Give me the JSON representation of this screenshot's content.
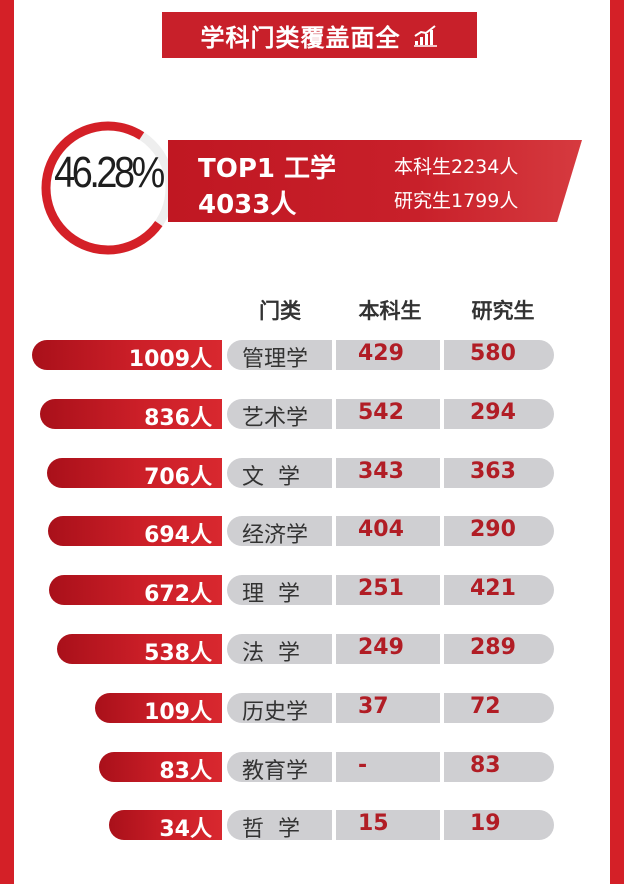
{
  "title": "学科门类覆盖面全",
  "title_icon": "bar-chart-icon",
  "top1": {
    "percent": "46.28%",
    "percent_value": 46.28,
    "label": "TOP1  工学",
    "total": "4033人",
    "undergrad": "本科生2234人",
    "postgrad": "研究生1799人"
  },
  "headers": {
    "category": "门类",
    "undergrad": "本科生",
    "postgrad": "研究生"
  },
  "colors": {
    "accent": "#c8202a",
    "pill": "#cfcfd2",
    "number": "#b11d25"
  },
  "chart_data": {
    "type": "bar",
    "categories": [
      "管理学",
      "艺术学",
      "文 学",
      "经济学",
      "理 学",
      "法 学",
      "历史学",
      "教育学",
      "哲 学"
    ],
    "series": [
      {
        "values": [
          1009,
          836,
          706,
          694,
          672,
          538,
          109,
          83,
          34
        ]
      },
      {
        "name": "本科生",
        "values": [
          429,
          542,
          343,
          404,
          251,
          249,
          37,
          null,
          15
        ]
      },
      {
        "name": "研究生",
        "values": [
          580,
          294,
          363,
          290,
          421,
          289,
          72,
          83,
          19
        ]
      }
    ],
    "rows": [
      {
        "total": "1009人",
        "category": "管理学",
        "undergrad": "429",
        "postgrad": "580"
      },
      {
        "total": "836人",
        "category": "艺术学",
        "undergrad": "542",
        "postgrad": "294"
      },
      {
        "total": "706人",
        "category": "文  学",
        "undergrad": "343",
        "postgrad": "363"
      },
      {
        "total": "694人",
        "category": "经济学",
        "undergrad": "404",
        "postgrad": "290"
      },
      {
        "total": "672人",
        "category": "理  学",
        "undergrad": "251",
        "postgrad": "421"
      },
      {
        "total": "538人",
        "category": "法  学",
        "undergrad": "249",
        "postgrad": "289"
      },
      {
        "total": "109人",
        "category": "历史学",
        "undergrad": "37",
        "postgrad": "72"
      },
      {
        "total": "83人",
        "category": "教育学",
        "undergrad": "-",
        "postgrad": "83"
      },
      {
        "total": "34人",
        "category": "哲  学",
        "undergrad": "15",
        "postgrad": "19"
      }
    ]
  }
}
